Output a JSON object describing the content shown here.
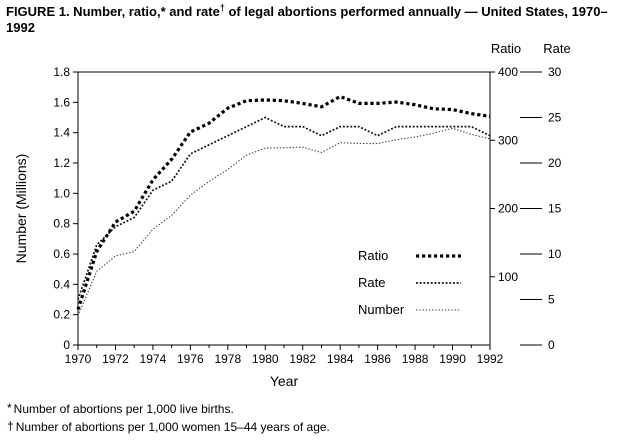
{
  "title": {
    "part1": "FIGURE 1. Number, ratio,* and rate",
    "sup": "†",
    "part2": " of legal abortions performed annually — United States, 1970–1992"
  },
  "footnotes": [
    {
      "symbol": "*",
      "text": "Number of abortions per 1,000 live births."
    },
    {
      "symbol": "†",
      "text": "Number of abortions per 1,000 women 15–44 years of age."
    }
  ],
  "chart_data": {
    "type": "line",
    "x_label": "Year",
    "x": [
      1970,
      1971,
      1972,
      1973,
      1974,
      1975,
      1976,
      1977,
      1978,
      1979,
      1980,
      1981,
      1982,
      1983,
      1984,
      1985,
      1986,
      1987,
      1988,
      1989,
      1990,
      1991,
      1992
    ],
    "x_tick_labels": [
      "1970",
      "1972",
      "1974",
      "1976",
      "1978",
      "1980",
      "1982",
      "1984",
      "1986",
      "1988",
      "1990",
      "1992"
    ],
    "left_axis": {
      "title": "Number (Millions)",
      "min": 0,
      "max": 1.8,
      "ticks": [
        0,
        0.2,
        0.4,
        0.6,
        0.8,
        1.0,
        1.2,
        1.4,
        1.6,
        1.8
      ],
      "tick_labels": [
        "0",
        "0.2",
        "0.4",
        "0.6",
        "0.8",
        "1.0",
        "1.2",
        "1.4",
        "1.6",
        "1.8"
      ]
    },
    "ratio_axis": {
      "title": "Ratio",
      "min": 0,
      "max": 400,
      "ticks": [
        100,
        200,
        300,
        400
      ]
    },
    "rate_axis": {
      "title": "Rate",
      "min": 0,
      "max": 30,
      "ticks": [
        0,
        5,
        10,
        15,
        20,
        25,
        30
      ]
    },
    "series": [
      {
        "name": "Ratio",
        "axis": "ratio",
        "style": "bold-dotted",
        "values": [
          52,
          137,
          180,
          196,
          242,
          272,
          312,
          325,
          347,
          358,
          359,
          358,
          354,
          349,
          364,
          354,
          354,
          356,
          352,
          346,
          345,
          339,
          335
        ]
      },
      {
        "name": "Rate",
        "axis": "rate",
        "style": "medium-dotted",
        "values": [
          5,
          11,
          13,
          14,
          17,
          18,
          21,
          22,
          23,
          24,
          25,
          24,
          24,
          23,
          24,
          24,
          23,
          24,
          24,
          24,
          24,
          24,
          23
        ]
      },
      {
        "name": "Number",
        "axis": "left",
        "style": "fine-dotted",
        "values": [
          0.193,
          0.486,
          0.587,
          0.616,
          0.763,
          0.855,
          0.988,
          1.079,
          1.158,
          1.252,
          1.298,
          1.301,
          1.304,
          1.269,
          1.334,
          1.329,
          1.328,
          1.354,
          1.371,
          1.397,
          1.429,
          1.389,
          1.359
        ]
      }
    ],
    "legend": {
      "position": "inside-right",
      "entries": [
        "Ratio",
        "Rate",
        "Number"
      ]
    }
  }
}
